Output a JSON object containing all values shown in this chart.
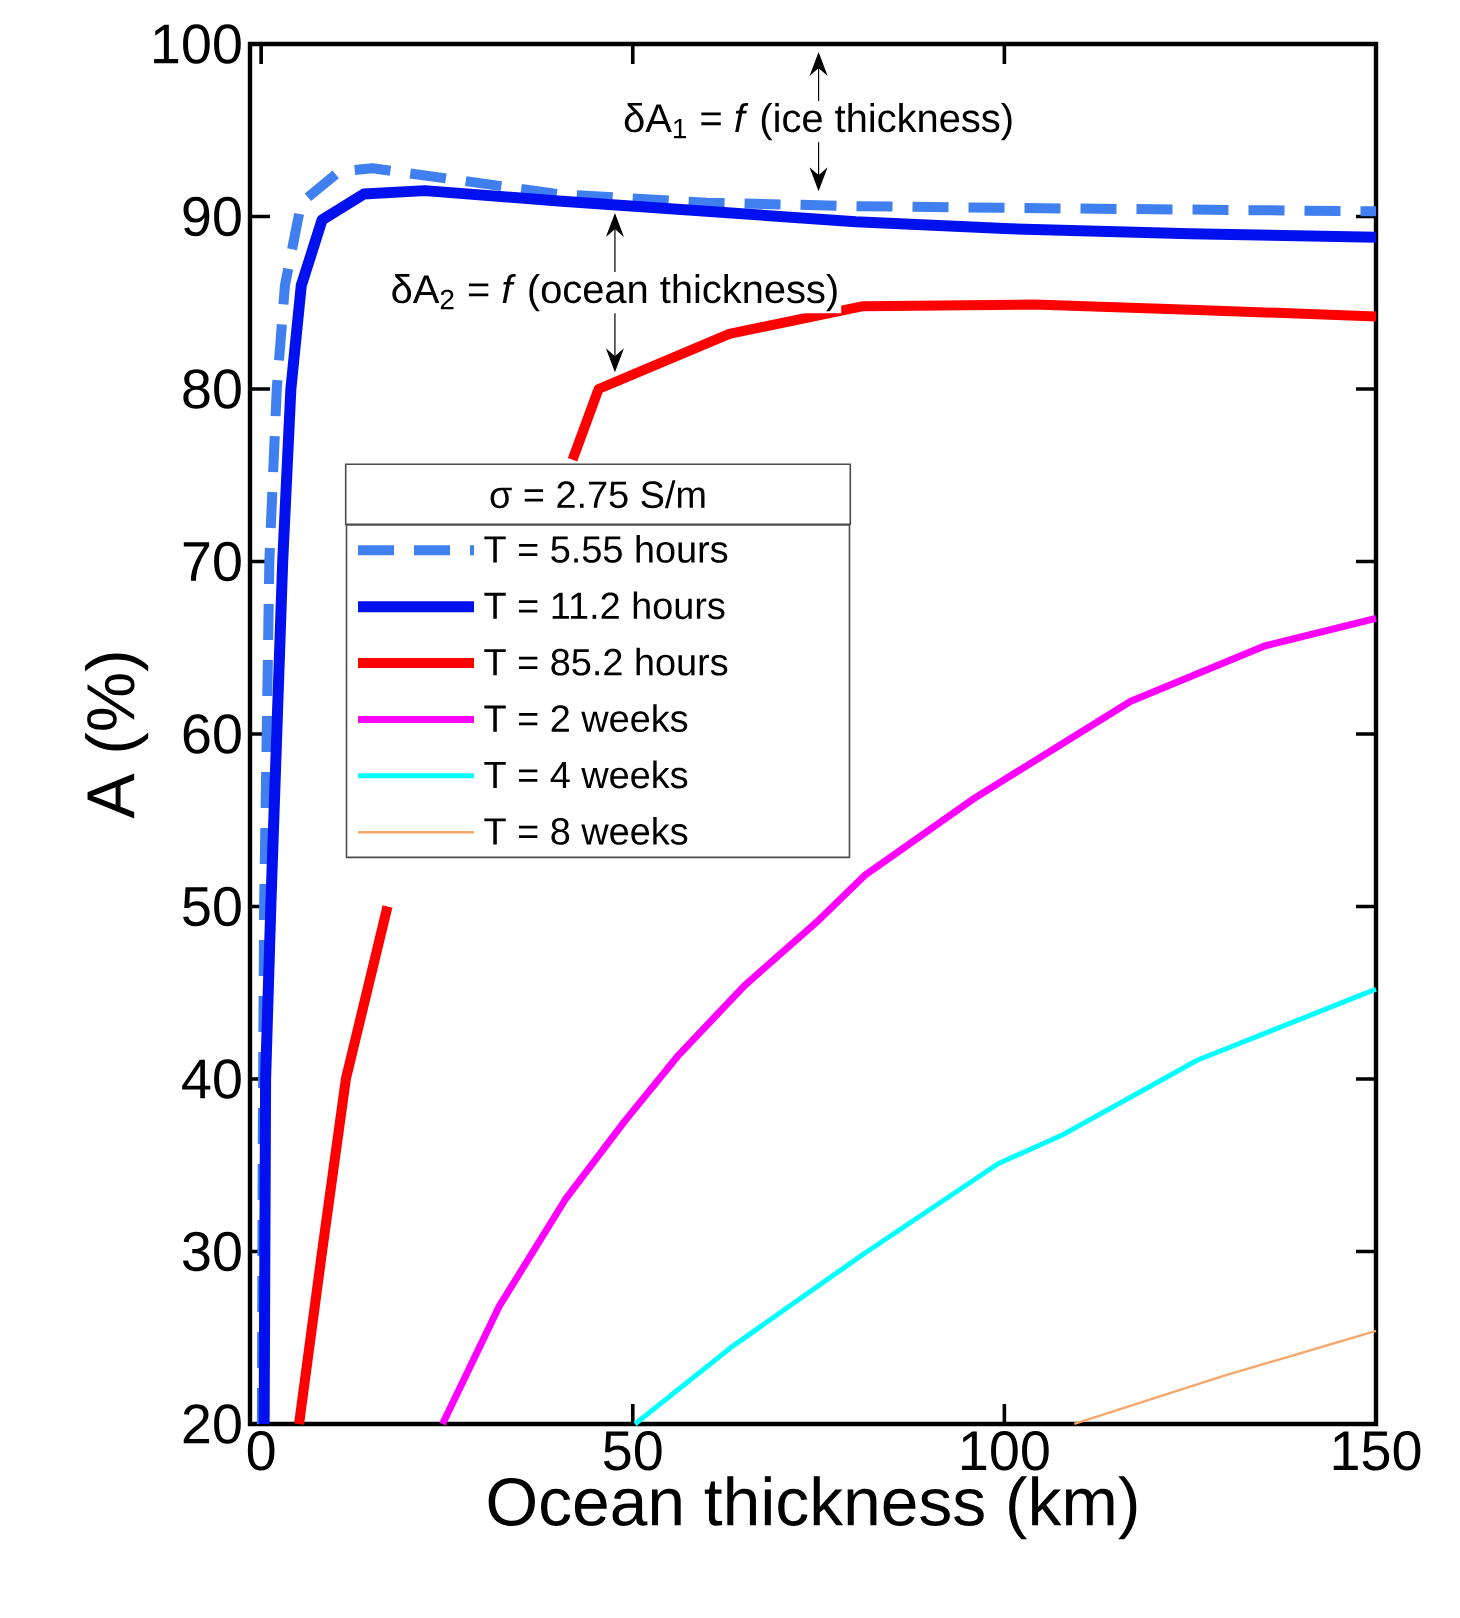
{
  "chart_data": {
    "type": "line",
    "xlabel": "Ocean thickness (km)",
    "ylabel": "A (%)",
    "legend_title": "σ = 2.75 S/m",
    "xlim": [
      -1.5,
      150
    ],
    "ylim": [
      20,
      100
    ],
    "xticks": [
      0,
      50,
      100,
      150
    ],
    "yticks": [
      20,
      30,
      40,
      50,
      60,
      70,
      80,
      90,
      100
    ],
    "legend": "top left",
    "grid": false,
    "series": [
      {
        "name": "T = 5.55 hours",
        "color": "#3f7ff0",
        "line_style": "dashed",
        "x": [
          0.1,
          0.2,
          0.4,
          1.1,
          2.1,
          3.2,
          5.4,
          10.5,
          15,
          25,
          40,
          60,
          80,
          100,
          150
        ],
        "values": [
          20,
          35,
          50,
          70,
          80,
          86,
          90.8,
          92.6,
          92.8,
          92.2,
          91.3,
          90.8,
          90.6,
          90.5,
          90.3
        ]
      },
      {
        "name": "T = 11.2 hours",
        "color": "#0010ef",
        "x": [
          0.4,
          0.5,
          0.6,
          1.3,
          2.1,
          2.9,
          4,
          5.4,
          8.2,
          13.8,
          22,
          40,
          60,
          80,
          100,
          125,
          150
        ],
        "values": [
          20,
          30,
          40,
          50,
          60,
          70,
          80,
          86,
          89.8,
          91.3,
          91.5,
          90.9,
          90.3,
          89.7,
          89.3,
          89,
          88.8
        ]
      },
      {
        "name": "T = 85.2 hours",
        "color": "#ff0000",
        "x": [
          5.1,
          8.2,
          11.4,
          17,
          28,
          41.9,
          45.4,
          63,
          81,
          104,
          125,
          150
        ],
        "values": [
          20,
          30,
          40,
          50,
          null,
          75.9,
          80,
          83.2,
          84.8,
          84.9,
          84.6,
          84.2
        ]
      },
      {
        "name": "T = 2 weeks",
        "color": "#ff00ff",
        "x": [
          24.4,
          32,
          40.9,
          49,
          56.2,
          65,
          75,
          81.2,
          95.7,
          117,
          135,
          150
        ],
        "values": [
          20,
          26.8,
          33,
          37.6,
          41.4,
          45.4,
          49.2,
          51.8,
          56.2,
          61.9,
          65.1,
          66.7
        ]
      },
      {
        "name": "T = 4 weeks",
        "color": "#00ffff",
        "x": [
          50.3,
          63.4,
          72.3,
          81.2,
          99.2,
          108,
          126,
          147.6,
          150
        ],
        "values": [
          20,
          24.5,
          27.2,
          29.9,
          35.1,
          36.8,
          41.1,
          44.8,
          45.2
        ]
      },
      {
        "name": "T = 8 weeks",
        "color": "#f5a66a",
        "x": [
          109.4,
          129.6,
          150
        ],
        "values": [
          20,
          22.8,
          25.4
        ]
      }
    ],
    "annotations": [
      {
        "text": "δA$_{1}$ = *f* (ice thickness)",
        "x": 75,
        "y": 91
      },
      {
        "text": "δA$_{2}$ = *f* (ocean thickness)",
        "x": 47.6,
        "y": 80.5
      }
    ]
  }
}
